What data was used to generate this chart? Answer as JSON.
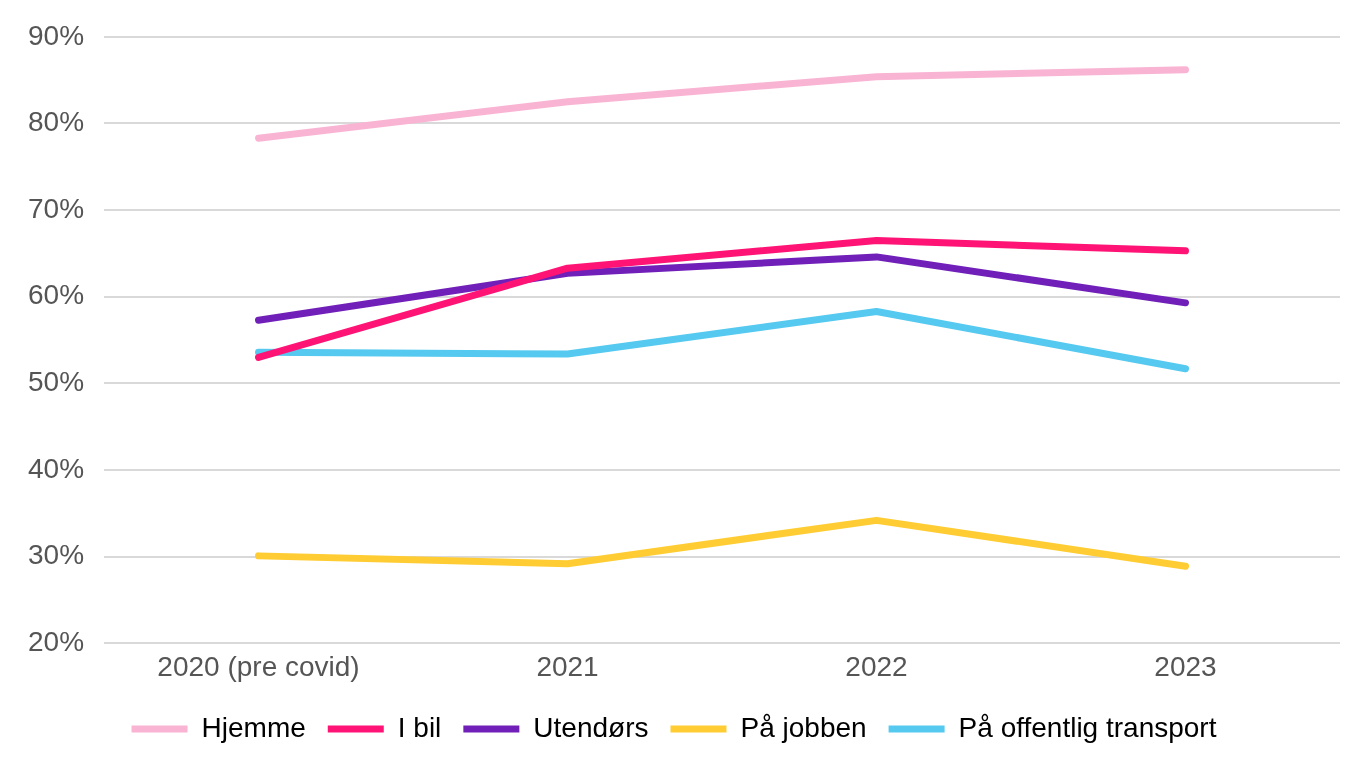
{
  "chart_data": {
    "type": "line",
    "categories": [
      "2020 (pre covid)",
      "2021",
      "2022",
      "2023"
    ],
    "series": [
      {
        "name": "Hjemme",
        "color": "#f9b4d4",
        "values": [
          78.3,
          82.5,
          85.4,
          86.2
        ]
      },
      {
        "name": "I bil",
        "color": "#ff1476",
        "values": [
          53.0,
          63.3,
          66.5,
          65.3
        ]
      },
      {
        "name": "Utendørs",
        "color": "#7020b8",
        "values": [
          57.3,
          62.7,
          64.6,
          59.3
        ]
      },
      {
        "name": "På jobben",
        "color": "#ffcd33",
        "values": [
          30.1,
          29.2,
          34.2,
          28.9
        ]
      },
      {
        "name": "På offentlig transport",
        "color": "#55c9ef",
        "values": [
          53.6,
          53.4,
          58.3,
          51.7
        ]
      }
    ],
    "ylim": [
      20,
      90
    ],
    "yticks": [
      {
        "value": 20,
        "label": "20%"
      },
      {
        "value": 30,
        "label": "30%"
      },
      {
        "value": 40,
        "label": "40%"
      },
      {
        "value": 50,
        "label": "50%"
      },
      {
        "value": 60,
        "label": "60%"
      },
      {
        "value": 70,
        "label": "70%"
      },
      {
        "value": 80,
        "label": "80%"
      },
      {
        "value": 90,
        "label": "90%"
      }
    ],
    "grid": "y",
    "legend": "bottom",
    "marker": "none",
    "line_style": "solid"
  }
}
